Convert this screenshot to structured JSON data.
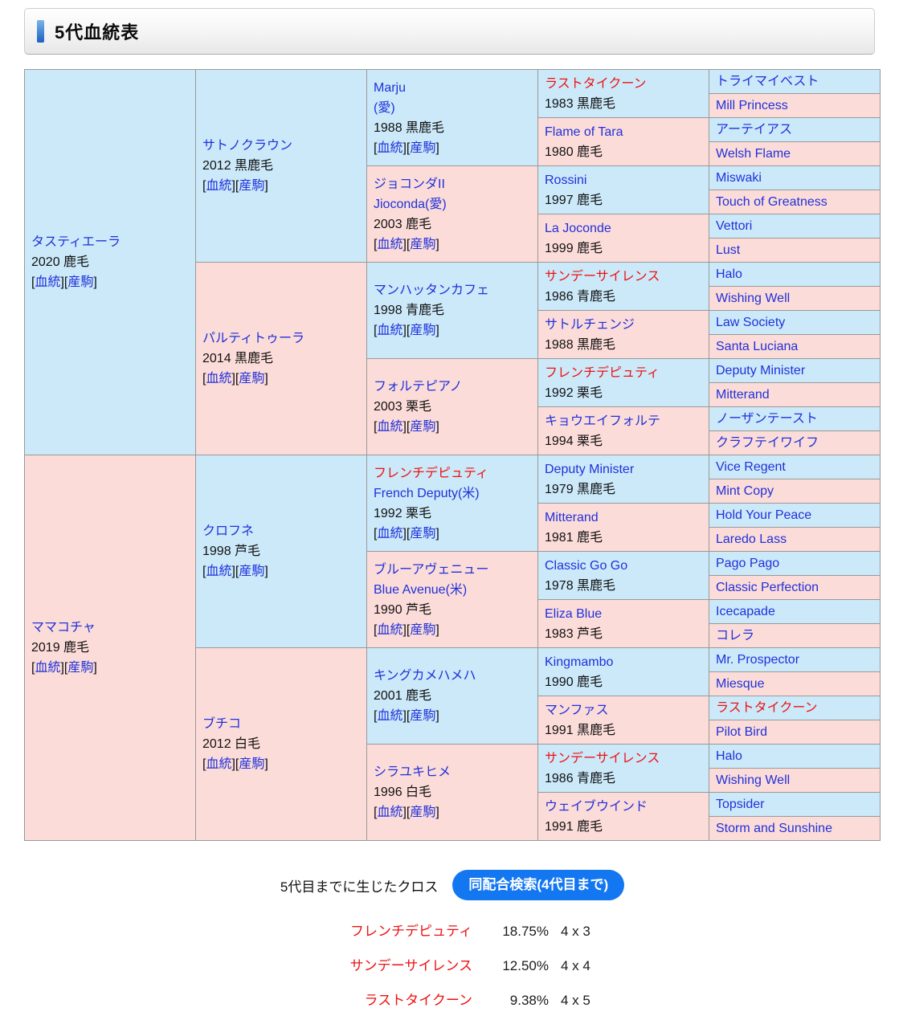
{
  "header": {
    "title": "5代血統表"
  },
  "pedigree": {
    "bracket_open": "[",
    "bracket_close": "]",
    "link_labels": [
      "血統",
      "産駒"
    ],
    "roots": [
      {
        "name": "タスティエーラ",
        "info": "2020 鹿毛",
        "links": true,
        "sex": "m",
        "children": [
          {
            "name": "サトノクラウン",
            "info": "2012 黒鹿毛",
            "links": true,
            "sex": "m",
            "children": [
              {
                "name": "Marju",
                "name2": "(愛)",
                "info": "1988 黒鹿毛",
                "links": true,
                "sex": "m",
                "children": [
                  {
                    "name": "ラストタイクーン",
                    "red": true,
                    "info": "1983 黒鹿毛",
                    "sex": "m",
                    "children": [
                      {
                        "name": "トライマイベスト",
                        "sex": "m"
                      },
                      {
                        "name": "Mill Princess",
                        "sex": "f"
                      }
                    ]
                  },
                  {
                    "name": "Flame of Tara",
                    "info": "1980 鹿毛",
                    "sex": "f",
                    "children": [
                      {
                        "name": "アーテイアス",
                        "sex": "m"
                      },
                      {
                        "name": "Welsh Flame",
                        "sex": "f"
                      }
                    ]
                  }
                ]
              },
              {
                "name": "ジョコンダII",
                "name2": "Jioconda(愛)",
                "info": "2003 鹿毛",
                "links": true,
                "sex": "f",
                "children": [
                  {
                    "name": "Rossini",
                    "info": "1997 鹿毛",
                    "sex": "m",
                    "children": [
                      {
                        "name": "Miswaki",
                        "sex": "m"
                      },
                      {
                        "name": "Touch of Greatness",
                        "sex": "f"
                      }
                    ]
                  },
                  {
                    "name": "La Joconde",
                    "info": "1999 鹿毛",
                    "sex": "f",
                    "children": [
                      {
                        "name": "Vettori",
                        "sex": "m"
                      },
                      {
                        "name": "Lust",
                        "sex": "f"
                      }
                    ]
                  }
                ]
              }
            ]
          },
          {
            "name": "パルティトゥーラ",
            "info": "2014 黒鹿毛",
            "links": true,
            "sex": "f",
            "children": [
              {
                "name": "マンハッタンカフェ",
                "info": "1998 青鹿毛",
                "links": true,
                "sex": "m",
                "children": [
                  {
                    "name": "サンデーサイレンス",
                    "red": true,
                    "info": "1986 青鹿毛",
                    "sex": "m",
                    "children": [
                      {
                        "name": "Halo",
                        "sex": "m"
                      },
                      {
                        "name": "Wishing Well",
                        "sex": "f"
                      }
                    ]
                  },
                  {
                    "name": "サトルチェンジ",
                    "info": "1988 黒鹿毛",
                    "sex": "f",
                    "children": [
                      {
                        "name": "Law Society",
                        "sex": "m"
                      },
                      {
                        "name": "Santa Luciana",
                        "sex": "f"
                      }
                    ]
                  }
                ]
              },
              {
                "name": "フォルテピアノ",
                "info": "2003 栗毛",
                "links": true,
                "sex": "f",
                "children": [
                  {
                    "name": "フレンチデピュティ",
                    "red": true,
                    "info": "1992 栗毛",
                    "sex": "m",
                    "children": [
                      {
                        "name": "Deputy Minister",
                        "sex": "m"
                      },
                      {
                        "name": "Mitterand",
                        "sex": "f"
                      }
                    ]
                  },
                  {
                    "name": "キョウエイフォルテ",
                    "info": "1994 栗毛",
                    "sex": "f",
                    "children": [
                      {
                        "name": "ノーザンテースト",
                        "sex": "m"
                      },
                      {
                        "name": "クラフテイワイフ",
                        "sex": "f"
                      }
                    ]
                  }
                ]
              }
            ]
          }
        ]
      },
      {
        "name": "ママコチャ",
        "info": "2019 鹿毛",
        "links": true,
        "sex": "f",
        "children": [
          {
            "name": "クロフネ",
            "info": "1998 芦毛",
            "links": true,
            "sex": "m",
            "children": [
              {
                "name": "フレンチデピュティ",
                "red": true,
                "name2": "French Deputy(米)",
                "info": "1992 栗毛",
                "links": true,
                "sex": "m",
                "children": [
                  {
                    "name": "Deputy Minister",
                    "info": "1979 黒鹿毛",
                    "sex": "m",
                    "children": [
                      {
                        "name": "Vice Regent",
                        "sex": "m"
                      },
                      {
                        "name": "Mint Copy",
                        "sex": "f"
                      }
                    ]
                  },
                  {
                    "name": "Mitterand",
                    "info": "1981 鹿毛",
                    "sex": "f",
                    "children": [
                      {
                        "name": "Hold Your Peace",
                        "sex": "m"
                      },
                      {
                        "name": "Laredo Lass",
                        "sex": "f"
                      }
                    ]
                  }
                ]
              },
              {
                "name": "ブルーアヴェニュー",
                "name2": "Blue Avenue(米)",
                "info": "1990 芦毛",
                "links": true,
                "sex": "f",
                "children": [
                  {
                    "name": "Classic Go Go",
                    "info": "1978 黒鹿毛",
                    "sex": "m",
                    "children": [
                      {
                        "name": "Pago Pago",
                        "sex": "m"
                      },
                      {
                        "name": "Classic Perfection",
                        "sex": "f"
                      }
                    ]
                  },
                  {
                    "name": "Eliza Blue",
                    "info": "1983 芦毛",
                    "sex": "f",
                    "children": [
                      {
                        "name": "Icecapade",
                        "sex": "m"
                      },
                      {
                        "name": "コレラ",
                        "sex": "f"
                      }
                    ]
                  }
                ]
              }
            ]
          },
          {
            "name": "ブチコ",
            "info": "2012 白毛",
            "links": true,
            "sex": "f",
            "children": [
              {
                "name": "キングカメハメハ",
                "info": "2001 鹿毛",
                "links": true,
                "sex": "m",
                "children": [
                  {
                    "name": "Kingmambo",
                    "info": "1990 鹿毛",
                    "sex": "m",
                    "children": [
                      {
                        "name": "Mr. Prospector",
                        "sex": "m"
                      },
                      {
                        "name": "Miesque",
                        "sex": "f"
                      }
                    ]
                  },
                  {
                    "name": "マンファス",
                    "info": "1991 黒鹿毛",
                    "sex": "f",
                    "children": [
                      {
                        "name": "ラストタイクーン",
                        "red": true,
                        "sex": "m"
                      },
                      {
                        "name": "Pilot Bird",
                        "sex": "f"
                      }
                    ]
                  }
                ]
              },
              {
                "name": "シラユキヒメ",
                "info": "1996 白毛",
                "links": true,
                "sex": "f",
                "children": [
                  {
                    "name": "サンデーサイレンス",
                    "red": true,
                    "info": "1986 青鹿毛",
                    "sex": "m",
                    "children": [
                      {
                        "name": "Halo",
                        "sex": "m"
                      },
                      {
                        "name": "Wishing Well",
                        "sex": "f"
                      }
                    ]
                  },
                  {
                    "name": "ウェイブウインド",
                    "info": "1991 鹿毛",
                    "sex": "f",
                    "children": [
                      {
                        "name": "Topsider",
                        "sex": "m"
                      },
                      {
                        "name": "Storm and Sunshine",
                        "sex": "f"
                      }
                    ]
                  }
                ]
              }
            ]
          }
        ]
      }
    ]
  },
  "cross_section": {
    "label": "5代目までに生じたクロス",
    "button_label": "同配合検索(4代目まで)",
    "rows": [
      {
        "name": "フレンチデピュティ",
        "percent": "18.75%",
        "cross": "4 x 3"
      },
      {
        "name": "サンデーサイレンス",
        "percent": "12.50%",
        "cross": "4 x 4"
      },
      {
        "name": "ラストタイクーン",
        "percent": "9.38%",
        "cross": "4 x 5"
      }
    ]
  },
  "colors": {
    "male_bg": "#cbe9f9",
    "female_bg": "#fcdcd8",
    "link_blue": "#1f31db",
    "highlight_red": "#ee1111",
    "button_blue": "#1477f2",
    "border_gray": "#999999"
  }
}
